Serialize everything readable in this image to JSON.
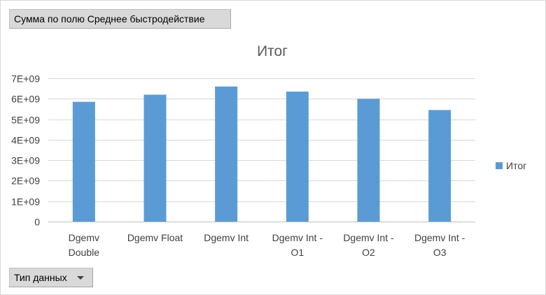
{
  "value_field_button": {
    "label": "Сумма по полю Среднее быстродействие"
  },
  "axis_field_button": {
    "label": "Тип данных"
  },
  "chart_data": {
    "type": "bar",
    "title": "Итог",
    "categories": [
      [
        "Dgemv",
        "Double"
      ],
      [
        "Dgemv Float"
      ],
      [
        "Dgemv Int"
      ],
      [
        "Dgemv Int -",
        "O1"
      ],
      [
        "Dgemv Int -",
        "O2"
      ],
      [
        "Dgemv Int -",
        "O3"
      ]
    ],
    "series": [
      {
        "name": "Итог",
        "color": "#5b9bd5",
        "values": [
          5850000000.0,
          6200000000.0,
          6600000000.0,
          6350000000.0,
          6000000000.0,
          5450000000.0
        ]
      }
    ],
    "ylim": [
      0,
      7000000000.0
    ],
    "yticks": [
      {
        "value": 0,
        "label": "0"
      },
      {
        "value": 1000000000.0,
        "label": "1E+09"
      },
      {
        "value": 2000000000.0,
        "label": "2E+09"
      },
      {
        "value": 3000000000.0,
        "label": "3E+09"
      },
      {
        "value": 4000000000.0,
        "label": "4E+09"
      },
      {
        "value": 5000000000.0,
        "label": "5E+09"
      },
      {
        "value": 6000000000.0,
        "label": "6E+09"
      },
      {
        "value": 7000000000.0,
        "label": "7E+09"
      }
    ],
    "xlabel": "",
    "ylabel": "",
    "grid": true,
    "legend_position": "right",
    "gridline_color": "#d9d9d9",
    "axis_color": "#bfbfbf"
  }
}
